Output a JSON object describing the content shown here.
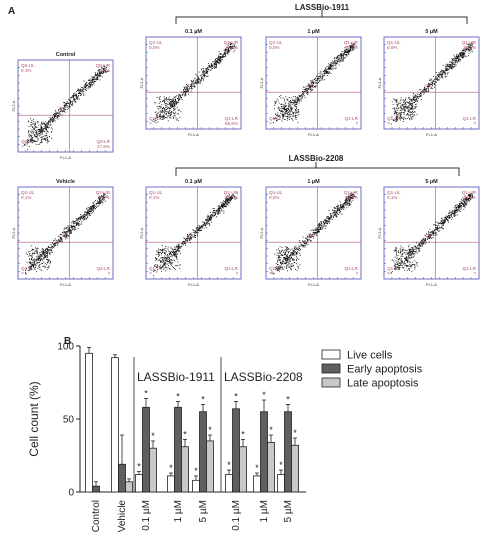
{
  "panel_a": {
    "letter": "A",
    "group1_label": "LASSBio-1911",
    "group2_label": "LASSBio-2208",
    "x_axis": "FL1-A",
    "y_axis": "FL2-A",
    "plots": [
      {
        "title": "Control",
        "ul": "Q0-UL\n0,1%",
        "ur": "Q0-UR\n0,0%",
        "ll": "Q0-LL\n?",
        "lr": "Q0-LR\n1?,6%",
        "center": "Q0"
      },
      {
        "title": "0.1 µM",
        "ul": "Q1-UL\n0,0%",
        "ur": "Q1-UR\n23,4%",
        "ll": "Q1-LL\n?",
        "lr": "Q1-LR\n66,6%",
        "center": "Q1"
      },
      {
        "title": "1 µM",
        "ul": "Q1-UL\n0,0%",
        "ur": "Q1-UR\n28,6%",
        "ll": "Q1-LL\n?",
        "lr": "Q1-LR\n?",
        "center": "Q1"
      },
      {
        "title": "5 µM",
        "ul": "Q1-UL\n0,0%",
        "ur": "Q1-UR\n30,8%",
        "ll": "Q1-LL\n?",
        "lr": "Q1-LR\n?",
        "center": "Q1"
      },
      {
        "title": "Vehicle",
        "ul": "Q2-UL\n0,1%",
        "ur": "Q2-UR\n0,?%",
        "ll": "Q2-LL\n?",
        "lr": "Q2-LR\n?",
        "center": "Q2"
      },
      {
        "title": "0.1 µM",
        "ul": "Q1-UL\n0,1%",
        "ur": "Q1-UR\n22,2%",
        "ll": "Q1-LL\n?",
        "lr": "Q1-LR\n?",
        "center": "Q1"
      },
      {
        "title": "1 µM",
        "ul": "Q1-UL\n0,0%",
        "ur": "Q1-UR\n25,8%",
        "ll": "Q1-LL\n?",
        "lr": "Q1-LR\n?",
        "center": "Q1"
      },
      {
        "title": "5 µM",
        "ul": "Q1-UL\n0,1%",
        "ur": "Q1-UR\n24,6%",
        "ll": "Q1-LL\n?",
        "lr": "Q1-LR\n?",
        "center": "Q1"
      }
    ]
  },
  "panel_b": {
    "letter": "B",
    "annotation_1911": "LASSBio-1911",
    "annotation_2208": "LASSBio-2208"
  },
  "chart_data": {
    "type": "bar",
    "ylabel": "Cell count (%)",
    "ylim": [
      0,
      100
    ],
    "yticks": [
      0,
      50,
      100
    ],
    "categories": [
      "Control",
      "Vehicle",
      "0.1 µM",
      "1 µM",
      "5 µM",
      "0.1 µM",
      "1 µM",
      "5 µM"
    ],
    "series": [
      {
        "name": "Live cells",
        "color": "#ffffff",
        "values": [
          95,
          92,
          12,
          11,
          8,
          12,
          11,
          12
        ],
        "errors": [
          4,
          2,
          2,
          2,
          3,
          3,
          2,
          3
        ]
      },
      {
        "name": "Early apoptosis",
        "color": "#5f5f5f",
        "values": [
          4,
          19,
          58,
          58,
          55,
          57,
          55,
          55
        ],
        "errors": [
          3,
          20,
          6,
          4,
          5,
          5,
          8,
          5
        ]
      },
      {
        "name": "Late apoptosis",
        "color": "#c8c8c8",
        "values": [
          0,
          7,
          30,
          31,
          35,
          31,
          34,
          32
        ],
        "errors": [
          0,
          2,
          5,
          5,
          4,
          5,
          5,
          5
        ]
      }
    ],
    "significance": "*",
    "legend_position": "top-right"
  }
}
